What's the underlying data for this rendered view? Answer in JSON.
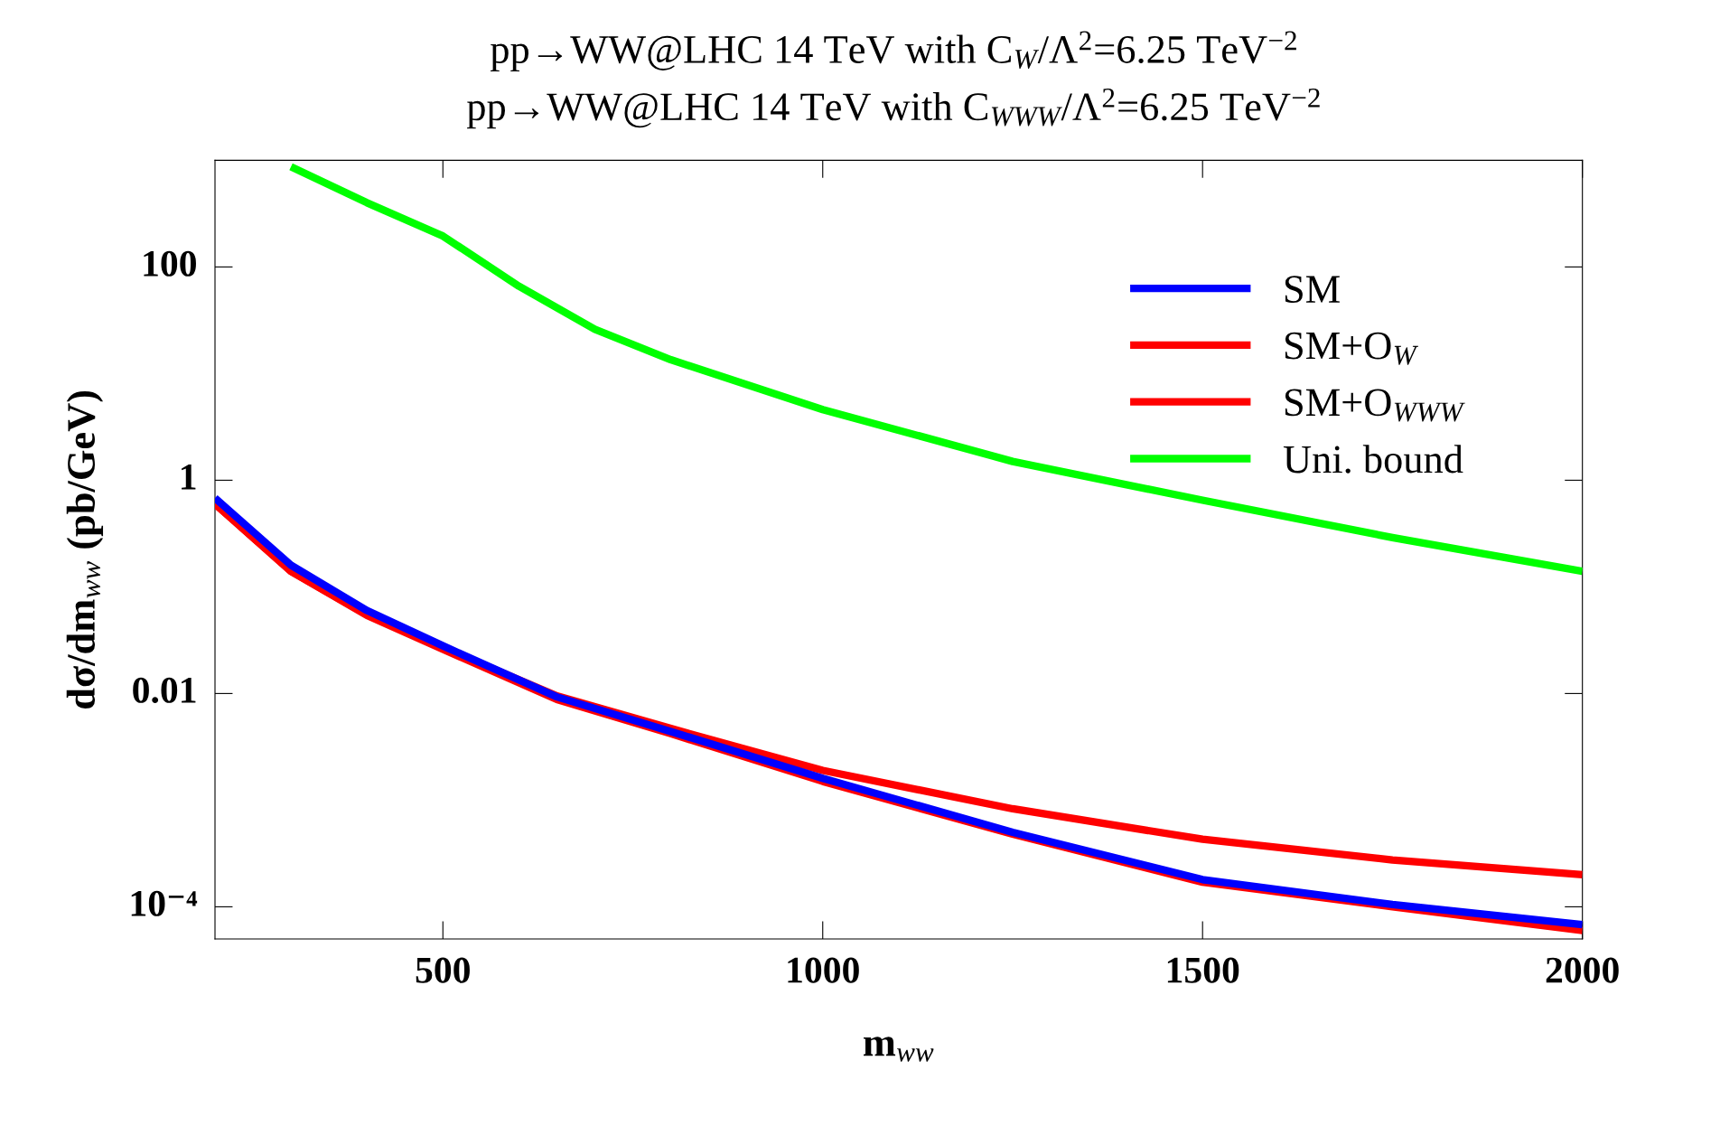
{
  "chart_data": {
    "type": "line",
    "title": "pp→WW@LHC 14 TeV with C$_{W}$/Λ$^{2}$=6.25 TeV$^{−2}$",
    "subtitle": "pp→WW@LHC 14 TeV with C$_{WWW}$/Λ$^{2}$=6.25 TeV$^{−2}$",
    "xlabel": "m$_{ww}$",
    "ylabel": "dσ/dm$_{ww}$ (pb/GeV)",
    "log": "y",
    "xlim": [
      200,
      2000
    ],
    "xticks": [
      500,
      1000,
      1500,
      2000
    ],
    "ylim": [
      5e-05,
      1000
    ],
    "yticks": [
      100,
      1,
      0.01,
      {
        "value": 0.0001,
        "label": "10⁻⁴"
      }
    ],
    "legend": "top right",
    "grid": false,
    "line_style": "solid",
    "marker": "none",
    "series": [
      {
        "name": "SM",
        "color": "#0000ff",
        "x": [
          200,
          300,
          400,
          500,
          650,
          800,
          1000,
          1250,
          1500,
          1750,
          2000
        ],
        "values": [
          0.68,
          0.16,
          0.06,
          0.028,
          0.0093,
          0.0044,
          0.0016,
          0.0005,
          0.00018,
          0.000105,
          6.8e-05
        ]
      },
      {
        "name": "SM+O$_{W}$",
        "color": "#ff0000",
        "x": [
          200,
          300,
          400,
          500,
          650,
          800,
          1000,
          1250,
          1500,
          1750,
          2000
        ],
        "values": [
          0.6,
          0.14,
          0.055,
          0.027,
          0.0095,
          0.0047,
          0.0019,
          0.00083,
          0.00043,
          0.000275,
          0.0002
        ]
      },
      {
        "name": "SM+O$_{WWW}$",
        "color": "#ff0000",
        "x": [
          200,
          300,
          400,
          500,
          650,
          800,
          1000,
          1250,
          1500,
          1750,
          2000
        ],
        "values": [
          0.6,
          0.14,
          0.054,
          0.026,
          0.0088,
          0.0042,
          0.0015,
          0.00048,
          0.00017,
          0.0001,
          6e-05
        ]
      },
      {
        "name": "Uni. bound",
        "color": "#00ff00",
        "x": [
          300,
          400,
          500,
          600,
          700,
          800,
          1000,
          1250,
          1500,
          1750,
          2000
        ],
        "values": [
          870,
          400,
          195,
          66,
          26,
          13.5,
          4.6,
          1.5,
          0.65,
          0.29,
          0.14
        ]
      }
    ]
  }
}
